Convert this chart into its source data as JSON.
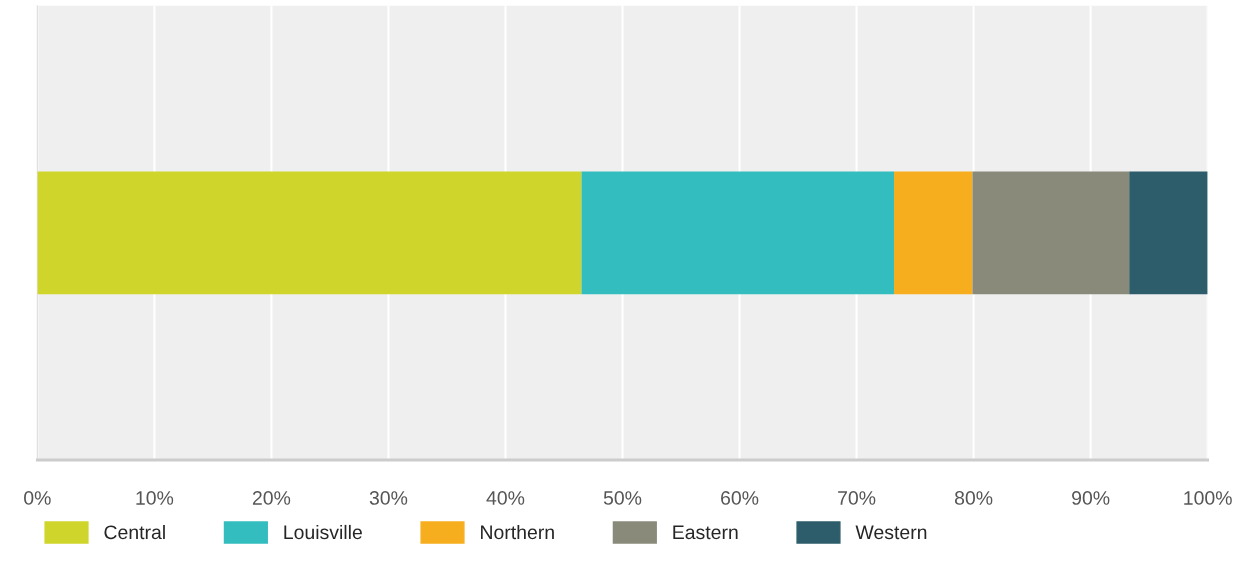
{
  "chart_data": {
    "type": "bar",
    "orientation": "horizontal",
    "stacked": true,
    "categories": [
      null
    ],
    "series": [
      {
        "name": "Central",
        "color": "#cfd52a",
        "values": [
          46.5
        ]
      },
      {
        "name": "Louisville",
        "color": "#33bdbf",
        "values": [
          26.7
        ]
      },
      {
        "name": "Northern",
        "color": "#f7ae1e",
        "values": [
          6.7
        ]
      },
      {
        "name": "Eastern",
        "color": "#8a8a7b",
        "values": [
          13.4
        ]
      },
      {
        "name": "Western",
        "color": "#2d5d6b",
        "values": [
          6.7
        ]
      }
    ],
    "xlim": [
      0,
      100
    ],
    "xticks": [
      {
        "value": 0,
        "label": "0%"
      },
      {
        "value": 10,
        "label": "10%"
      },
      {
        "value": 20,
        "label": "20%"
      },
      {
        "value": 30,
        "label": "30%"
      },
      {
        "value": 40,
        "label": "40%"
      },
      {
        "value": 50,
        "label": "50%"
      },
      {
        "value": 60,
        "label": "60%"
      },
      {
        "value": 70,
        "label": "70%"
      },
      {
        "value": 80,
        "label": "80%"
      },
      {
        "value": 90,
        "label": "90%"
      },
      {
        "value": 100,
        "label": "100%"
      }
    ],
    "tick_labels": "x",
    "grid": "x",
    "legend": "bottom"
  }
}
